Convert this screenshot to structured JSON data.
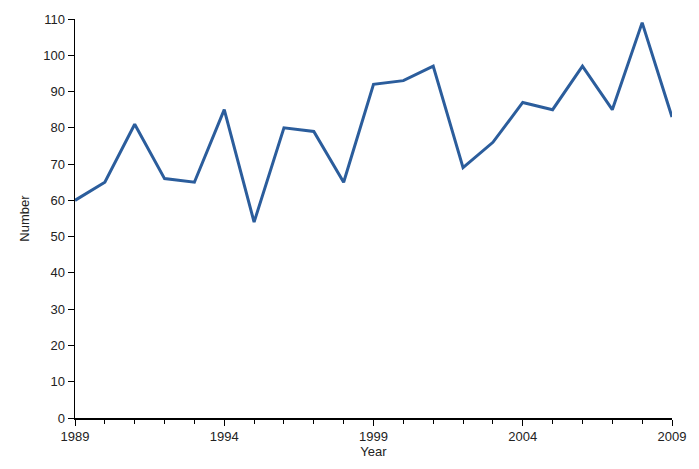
{
  "chart_data": {
    "type": "line",
    "x": [
      1989,
      1990,
      1991,
      1992,
      1993,
      1994,
      1995,
      1996,
      1997,
      1998,
      1999,
      2000,
      2001,
      2002,
      2003,
      2004,
      2005,
      2006,
      2007,
      2008,
      2009
    ],
    "values": [
      60,
      65,
      81,
      66,
      65,
      85,
      54,
      80,
      79,
      65,
      92,
      93,
      97,
      69,
      76,
      87,
      85,
      97,
      85,
      109,
      83
    ],
    "color": "#2b5d9c",
    "x_label": "Year",
    "y_label": "Number",
    "xlim": [
      1989,
      2009
    ],
    "xticks": [
      1989,
      1994,
      1999,
      2004,
      2009
    ],
    "ylim": [
      0,
      110
    ],
    "yticks": [
      0,
      10,
      20,
      30,
      40,
      50,
      60,
      70,
      80,
      90,
      100,
      110
    ],
    "grid": false
  }
}
